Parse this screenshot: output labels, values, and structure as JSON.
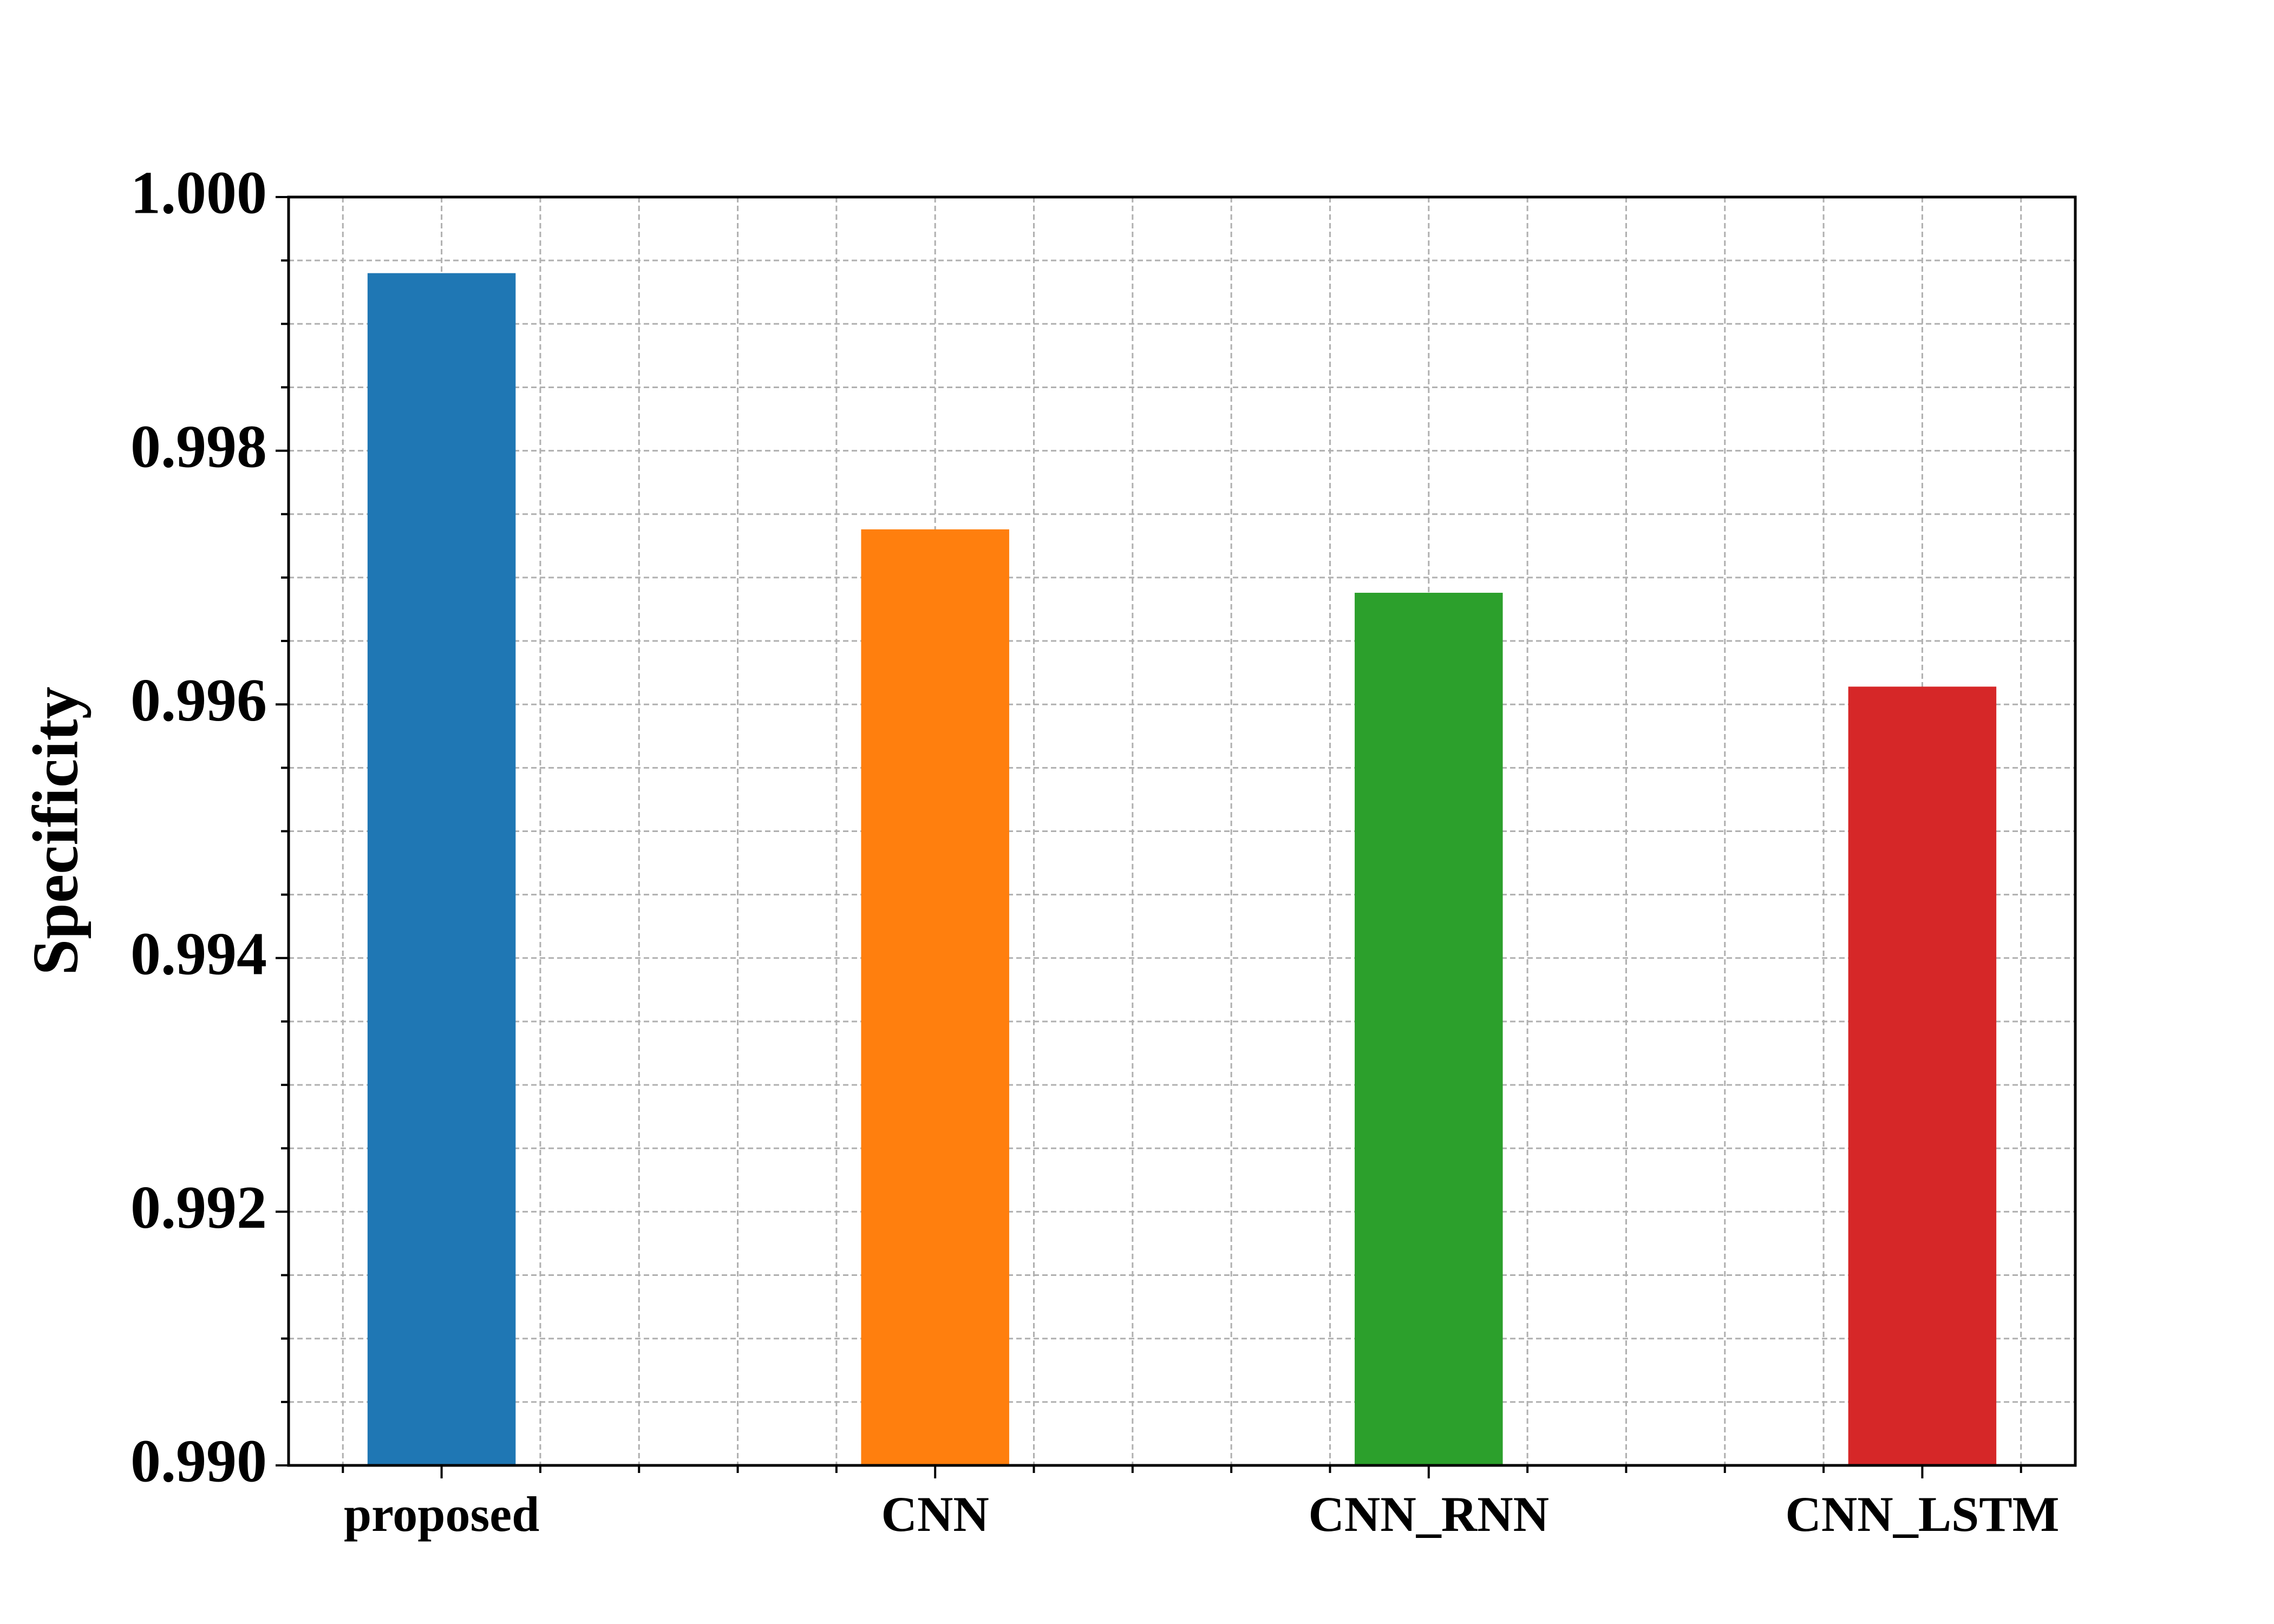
{
  "chart_data": {
    "type": "bar",
    "y_label": "Specificity",
    "categories": [
      "proposed",
      "CNN",
      "CNN_RNN",
      "CNN_LSTM"
    ],
    "values": [
      0.9994,
      0.99738,
      0.99688,
      0.99614
    ],
    "colors": [
      "#1f77b4",
      "#ff7f0e",
      "#2ca02c",
      "#d62728"
    ],
    "ylim": [
      0.99,
      1.0
    ],
    "yticks": [
      {
        "value": 0.99,
        "label": "0.990"
      },
      0.992,
      0.994,
      0.996,
      0.998,
      {
        "value": 1.0,
        "label": "1.000"
      }
    ],
    "grid": true
  }
}
